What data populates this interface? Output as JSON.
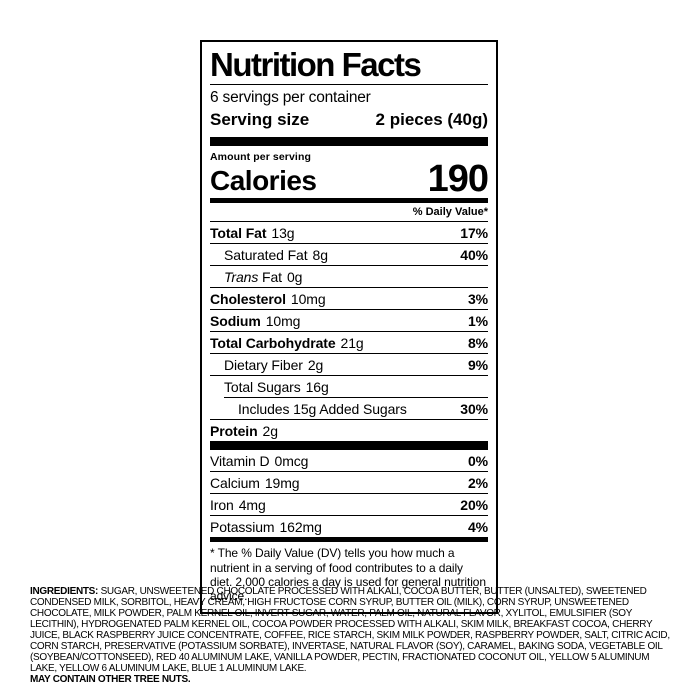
{
  "label": {
    "title": "Nutrition Facts",
    "servings_per_container": "6 servings per container",
    "serving_size_label": "Serving size",
    "serving_size_value": "2 pieces (40g)",
    "amount_per_serving": "Amount per serving",
    "calories_label": "Calories",
    "calories_value": "190",
    "daily_value_header": "% Daily Value*",
    "nutrients": [
      {
        "name": "Total Fat",
        "amount": "13g",
        "dv": "17%"
      },
      {
        "name": "Saturated Fat",
        "amount": "8g",
        "dv": "40%"
      },
      {
        "name_italic": "Trans",
        "name": "Fat",
        "amount": "0g",
        "dv": ""
      },
      {
        "name": "Cholesterol",
        "amount": "10mg",
        "dv": "3%"
      },
      {
        "name": "Sodium",
        "amount": "10mg",
        "dv": "1%"
      },
      {
        "name": "Total Carbohydrate",
        "amount": "21g",
        "dv": "8%"
      },
      {
        "name": "Dietary Fiber",
        "amount": "2g",
        "dv": "9%"
      },
      {
        "name": "Total Sugars",
        "amount": "16g",
        "dv": ""
      },
      {
        "name": "Includes 15g Added Sugars",
        "amount": "",
        "dv": "30%"
      },
      {
        "name": "Protein",
        "amount": "2g",
        "dv": ""
      }
    ],
    "micronutrients": [
      {
        "name": "Vitamin D",
        "amount": "0mcg",
        "dv": "0%"
      },
      {
        "name": "Calcium",
        "amount": "19mg",
        "dv": "2%"
      },
      {
        "name": "Iron",
        "amount": "4mg",
        "dv": "20%"
      },
      {
        "name": "Potassium",
        "amount": "162mg",
        "dv": "4%"
      }
    ],
    "footnote": "* The % Daily Value (DV) tells you how much a nutrient in a serving of food contributes to a daily diet. 2,000 calories a day is used for general nutrition advice."
  },
  "ingredients": {
    "heading": "INGREDIENTS:",
    "text": "SUGAR, UNSWEETENED CHOCOLATE PROCESSED WITH ALKALI, COCOA BUTTER, BUTTER (UNSALTED), SWEETENED CONDENSED MILK, SORBITOL, HEAVY CREAM, HIGH FRUCTOSE CORN SYRUP, BUTTER OIL (MILK), CORN SYRUP, UNSWEETENED CHOCOLATE, MILK POWDER, PALM KERNEL OIL, INVERT SUGAR, WATER, PALM OIL, NATURAL FLAVOR, XYLITOL, EMULSIFIER (SOY LECITHIN), HYDROGENATED PALM KERNEL OIL, COCOA POWDER PROCESSED WITH ALKALI, SKIM MILK, BREAKFAST COCOA, CHERRY JUICE, BLACK RASPBERRY JUICE CONCENTRATE, COFFEE, RICE STARCH, SKIM MILK POWDER, RASPBERRY POWDER, SALT, CITRIC ACID, CORN STARCH, PRESERVATIVE (POTASSIUM SORBATE), INVERTASE, NATURAL FLAVOR (SOY), CARAMEL, BAKING SODA, VEGETABLE OIL (SOYBEAN/COTTONSEED), RED 40 ALUMINUM LAKE, VANILLA POWDER, PECTIN, FRACTIONATED COCONUT OIL, YELLOW 5 ALUMINUM LAKE, YELLOW 6 ALUMINUM LAKE, BLUE 1 ALUMINUM LAKE.",
    "allergen_warning": "MAY CONTAIN OTHER TREE NUTS."
  },
  "colors": {
    "foreground": "#000000",
    "background": "#ffffff"
  }
}
